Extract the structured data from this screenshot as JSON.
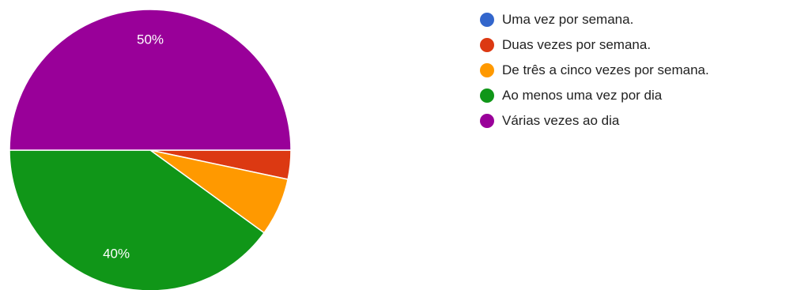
{
  "chart_data": {
    "type": "pie",
    "title": "",
    "legend_position": "right",
    "slices": [
      {
        "name": "Uma vez por semana.",
        "value": 0,
        "color": "#3366cc",
        "label": ""
      },
      {
        "name": "Duas vezes por semana.",
        "value": 3.33,
        "color": "#dc3912",
        "label": ""
      },
      {
        "name": "De três a cinco vezes por semana.",
        "value": 6.67,
        "color": "#ff9900",
        "label": ""
      },
      {
        "name": "Ao menos uma vez por dia",
        "value": 40,
        "color": "#109618",
        "label": "40%"
      },
      {
        "name": "Várias vezes ao dia",
        "value": 50,
        "color": "#990099",
        "label": "50%"
      }
    ]
  }
}
